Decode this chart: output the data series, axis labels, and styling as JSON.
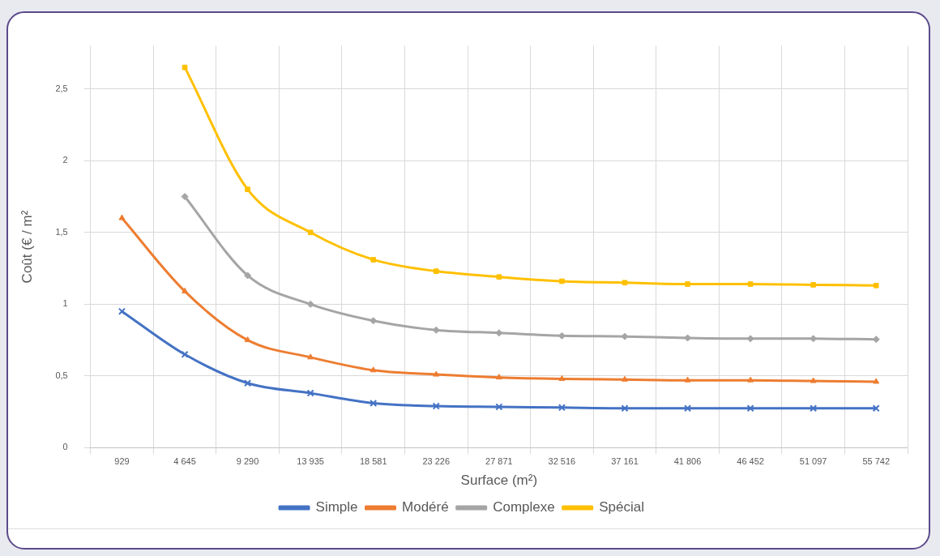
{
  "chart_data": {
    "type": "line",
    "xlabel": "Surface (m²)",
    "ylabel": "Coût (€ / m²",
    "categories": [
      "929",
      "4 645",
      "9 290",
      "13 935",
      "18 581",
      "23 226",
      "27 871",
      "32 516",
      "37 161",
      "41 806",
      "46 452",
      "51 097",
      "55 742"
    ],
    "series": [
      {
        "name": "Simple",
        "color": "#4472c4",
        "marker": "cross",
        "values": [
          0.95,
          0.65,
          0.45,
          0.38,
          0.31,
          0.29,
          0.285,
          0.28,
          0.275,
          0.275,
          0.275,
          0.275,
          0.275
        ]
      },
      {
        "name": "Modéré",
        "color": "#ed7d31",
        "marker": "triangle",
        "values": [
          1.6,
          1.09,
          0.75,
          0.63,
          0.54,
          0.51,
          0.49,
          0.48,
          0.475,
          0.47,
          0.47,
          0.465,
          0.46
        ]
      },
      {
        "name": "Complexe",
        "color": "#a5a5a5",
        "marker": "diamond",
        "values": [
          null,
          1.75,
          1.2,
          1.0,
          0.885,
          0.82,
          0.8,
          0.78,
          0.775,
          0.765,
          0.76,
          0.76,
          0.755
        ]
      },
      {
        "name": "Spécial",
        "color": "#ffc000",
        "marker": "square",
        "values": [
          null,
          2.65,
          1.8,
          1.5,
          1.31,
          1.23,
          1.19,
          1.16,
          1.15,
          1.14,
          1.14,
          1.135,
          1.13
        ]
      }
    ],
    "ylim": [
      0,
      2.8
    ],
    "yticks": [
      0,
      {
        "value": 0.5,
        "label": "0,5"
      },
      1,
      {
        "value": 1.5,
        "label": "1,5"
      },
      2,
      {
        "value": 2.5,
        "label": "2,5"
      }
    ],
    "grid": true,
    "legend": "bottom"
  }
}
